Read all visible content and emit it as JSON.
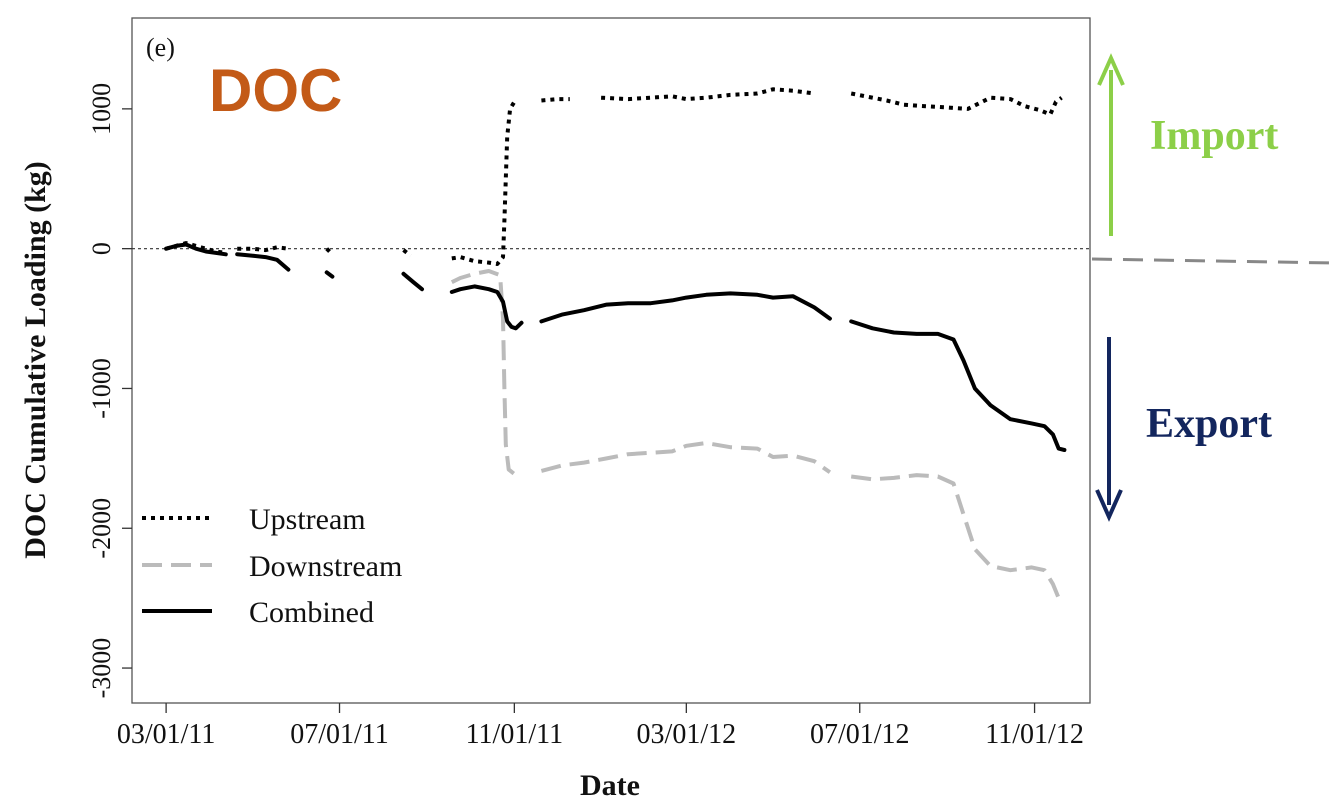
{
  "chart_data": {
    "type": "line",
    "panel_label": "(e)",
    "title": "DOC",
    "xlabel": "Date",
    "ylabel": "DOC Cumulative Loading (kg)",
    "x_tick_labels": [
      "03/01/11",
      "07/01/11",
      "11/01/11",
      "03/01/12",
      "07/01/12",
      "11/01/12"
    ],
    "x_tick_dates": [
      "2011-03-01",
      "2011-07-01",
      "2011-11-01",
      "2012-03-01",
      "2012-07-01",
      "2012-11-01"
    ],
    "y_ticks": [
      -3000,
      -2000,
      -1000,
      0,
      1000
    ],
    "xlim": [
      "2011-02-05",
      "2012-12-10"
    ],
    "ylim": [
      -3250,
      1650
    ],
    "zero_line": true,
    "grid": false,
    "legend_position": "bottom-left",
    "series": [
      {
        "name": "Upstream",
        "style": "dotted",
        "color": "#000000",
        "points": [
          [
            "2011-03-01",
            0
          ],
          [
            "2011-03-08",
            20
          ],
          [
            "2011-03-15",
            40
          ],
          [
            "2011-03-22",
            20
          ],
          [
            "2011-03-29",
            0
          ],
          [
            "2011-04-05",
            -20
          ],
          [
            "2011-04-12",
            -30
          ],
          null,
          [
            "2011-04-20",
            0
          ],
          [
            "2011-05-01",
            0
          ],
          [
            "2011-05-10",
            -10
          ],
          [
            "2011-05-18",
            10
          ],
          [
            "2011-05-26",
            0
          ],
          null,
          [
            "2011-06-22",
            0
          ],
          [
            "2011-06-26",
            -40
          ],
          null,
          [
            "2011-08-15",
            -10
          ],
          [
            "2011-08-20",
            -50
          ],
          null,
          [
            "2011-09-18",
            -70
          ],
          [
            "2011-09-24",
            -60
          ],
          [
            "2011-10-04",
            -90
          ],
          [
            "2011-10-14",
            -100
          ],
          [
            "2011-10-20",
            -110
          ],
          [
            "2011-10-24",
            -60
          ],
          [
            "2011-10-25",
            200
          ],
          [
            "2011-10-26",
            500
          ],
          [
            "2011-10-27",
            800
          ],
          [
            "2011-10-29",
            1000
          ],
          [
            "2011-11-01",
            1050
          ],
          null,
          [
            "2011-11-20",
            1060
          ],
          [
            "2011-12-01",
            1070
          ],
          [
            "2011-12-10",
            1070
          ],
          null,
          [
            "2012-01-01",
            1080
          ],
          [
            "2012-01-20",
            1070
          ],
          [
            "2012-02-05",
            1080
          ],
          [
            "2012-02-20",
            1090
          ],
          [
            "2012-03-01",
            1070
          ],
          [
            "2012-03-15",
            1080
          ],
          [
            "2012-04-01",
            1100
          ],
          [
            "2012-04-20",
            1110
          ],
          [
            "2012-05-01",
            1140
          ],
          [
            "2012-05-15",
            1130
          ],
          [
            "2012-05-30",
            1110
          ],
          null,
          [
            "2012-06-25",
            1110
          ],
          [
            "2012-07-05",
            1090
          ],
          [
            "2012-07-20",
            1060
          ],
          [
            "2012-08-01",
            1030
          ],
          [
            "2012-08-15",
            1020
          ],
          [
            "2012-09-01",
            1010
          ],
          [
            "2012-09-15",
            1000
          ],
          [
            "2012-10-01",
            1080
          ],
          [
            "2012-10-15",
            1070
          ],
          [
            "2012-10-25",
            1020
          ],
          [
            "2012-11-05",
            990
          ],
          [
            "2012-11-12",
            960
          ],
          [
            "2012-11-16",
            1050
          ],
          [
            "2012-11-20",
            1080
          ]
        ]
      },
      {
        "name": "Downstream",
        "style": "dashed",
        "color": "#bbbbbb",
        "points": [
          [
            "2011-09-18",
            -240
          ],
          [
            "2011-09-24",
            -210
          ],
          [
            "2011-10-04",
            -180
          ],
          [
            "2011-10-14",
            -160
          ],
          [
            "2011-10-22",
            -190
          ],
          [
            "2011-10-24",
            -500
          ],
          [
            "2011-10-25",
            -1000
          ],
          [
            "2011-10-26",
            -1400
          ],
          [
            "2011-10-28",
            -1580
          ],
          [
            "2011-11-02",
            -1620
          ],
          null,
          [
            "2011-11-20",
            -1590
          ],
          [
            "2011-12-05",
            -1550
          ],
          [
            "2011-12-20",
            -1530
          ],
          [
            "2012-01-05",
            -1500
          ],
          [
            "2012-01-20",
            -1470
          ],
          [
            "2012-02-05",
            -1460
          ],
          [
            "2012-02-20",
            -1450
          ],
          [
            "2012-03-01",
            -1410
          ],
          [
            "2012-03-15",
            -1390
          ],
          [
            "2012-04-01",
            -1420
          ],
          [
            "2012-04-20",
            -1430
          ],
          [
            "2012-05-01",
            -1490
          ],
          [
            "2012-05-15",
            -1480
          ],
          [
            "2012-05-30",
            -1520
          ],
          [
            "2012-06-10",
            -1600
          ],
          null,
          [
            "2012-06-25",
            -1630
          ],
          [
            "2012-07-10",
            -1650
          ],
          [
            "2012-07-25",
            -1640
          ],
          [
            "2012-08-10",
            -1620
          ],
          [
            "2012-08-25",
            -1630
          ],
          [
            "2012-09-05",
            -1680
          ],
          [
            "2012-09-12",
            -1900
          ],
          [
            "2012-09-20",
            -2150
          ],
          [
            "2012-10-01",
            -2270
          ],
          [
            "2012-10-15",
            -2300
          ],
          [
            "2012-10-30",
            -2280
          ],
          [
            "2012-11-08",
            -2300
          ],
          [
            "2012-11-14",
            -2400
          ],
          [
            "2012-11-18",
            -2500
          ]
        ]
      },
      {
        "name": "Combined",
        "style": "solid",
        "color": "#000000",
        "points": [
          [
            "2011-03-01",
            0
          ],
          [
            "2011-03-08",
            20
          ],
          [
            "2011-03-15",
            30
          ],
          [
            "2011-03-22",
            0
          ],
          [
            "2011-03-29",
            -20
          ],
          [
            "2011-04-05",
            -30
          ],
          [
            "2011-04-12",
            -40
          ],
          null,
          [
            "2011-04-20",
            -40
          ],
          [
            "2011-05-01",
            -50
          ],
          [
            "2011-05-10",
            -60
          ],
          [
            "2011-05-18",
            -80
          ],
          [
            "2011-05-26",
            -150
          ],
          null,
          [
            "2011-06-22",
            -170
          ],
          [
            "2011-06-26",
            -200
          ],
          null,
          [
            "2011-08-15",
            -180
          ],
          [
            "2011-08-22",
            -240
          ],
          [
            "2011-08-28",
            -290
          ],
          null,
          [
            "2011-09-18",
            -310
          ],
          [
            "2011-09-24",
            -290
          ],
          [
            "2011-10-04",
            -270
          ],
          [
            "2011-10-14",
            -290
          ],
          [
            "2011-10-20",
            -310
          ],
          [
            "2011-10-24",
            -380
          ],
          [
            "2011-10-27",
            -520
          ],
          [
            "2011-10-30",
            -560
          ],
          [
            "2011-11-02",
            -570
          ],
          [
            "2011-11-06",
            -530
          ],
          null,
          [
            "2011-11-20",
            -520
          ],
          [
            "2011-12-05",
            -470
          ],
          [
            "2011-12-20",
            -440
          ],
          [
            "2012-01-05",
            -400
          ],
          [
            "2012-01-20",
            -390
          ],
          [
            "2012-02-05",
            -390
          ],
          [
            "2012-02-20",
            -370
          ],
          [
            "2012-03-01",
            -350
          ],
          [
            "2012-03-15",
            -330
          ],
          [
            "2012-04-01",
            -320
          ],
          [
            "2012-04-20",
            -330
          ],
          [
            "2012-05-01",
            -350
          ],
          [
            "2012-05-15",
            -340
          ],
          [
            "2012-05-30",
            -420
          ],
          [
            "2012-06-10",
            -500
          ],
          null,
          [
            "2012-06-25",
            -520
          ],
          [
            "2012-07-10",
            -570
          ],
          [
            "2012-07-25",
            -600
          ],
          [
            "2012-08-10",
            -610
          ],
          [
            "2012-08-25",
            -610
          ],
          [
            "2012-09-05",
            -650
          ],
          [
            "2012-09-12",
            -800
          ],
          [
            "2012-09-20",
            -1000
          ],
          [
            "2012-10-01",
            -1120
          ],
          [
            "2012-10-15",
            -1220
          ],
          [
            "2012-10-30",
            -1250
          ],
          [
            "2012-11-08",
            -1270
          ],
          [
            "2012-11-14",
            -1330
          ],
          [
            "2012-11-18",
            -1430
          ],
          [
            "2012-11-22",
            -1440
          ]
        ]
      }
    ],
    "annotations": [
      {
        "text": "Import",
        "color": "#8ccf48",
        "direction": "up"
      },
      {
        "text": "Export",
        "color": "#13265e",
        "direction": "down"
      }
    ]
  },
  "colors": {
    "title": "#c35a17",
    "import": "#8ccf48",
    "export": "#13265e",
    "divider": "#888888"
  }
}
